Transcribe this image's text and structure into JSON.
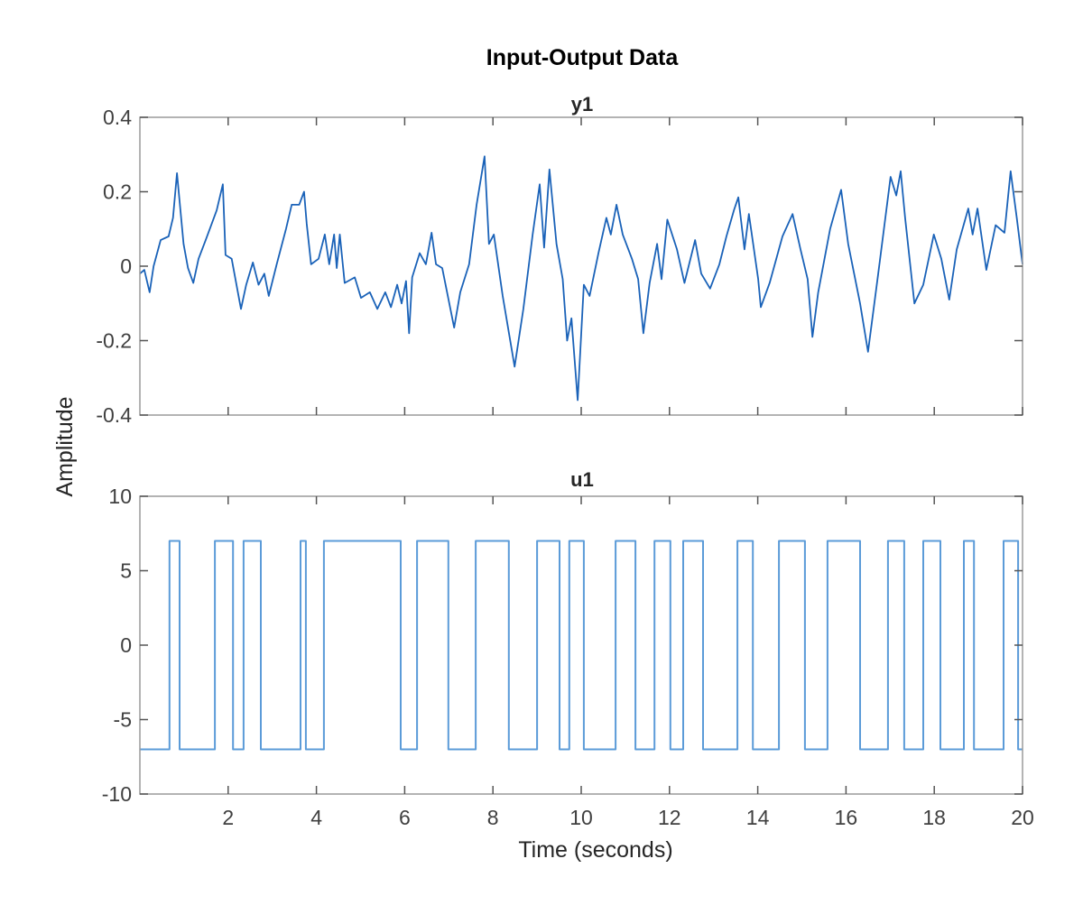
{
  "chart_data": [
    {
      "type": "line",
      "title": "Input-Output Data",
      "subplot_title": "y1",
      "ylabel": "Amplitude",
      "xlim": [
        0,
        20
      ],
      "ylim": [
        -0.4,
        0.4
      ],
      "yticks": [
        -0.4,
        -0.2,
        0,
        0.2,
        0.4
      ],
      "ytick_labels": [
        "-0.4",
        "-0.2",
        "0",
        "0.2",
        "0.4"
      ],
      "xticks": [
        2,
        4,
        6,
        8,
        10,
        12,
        14,
        16,
        18,
        20
      ],
      "grid": false,
      "color": "#1a62b8",
      "x": [
        0,
        0.1,
        0.22,
        0.31,
        0.47,
        0.65,
        0.75,
        0.84,
        0.99,
        1.09,
        1.21,
        1.33,
        1.49,
        1.74,
        1.88,
        1.94,
        2.08,
        2.29,
        2.41,
        2.56,
        2.69,
        2.82,
        2.92,
        3.1,
        3.31,
        3.44,
        3.61,
        3.72,
        3.78,
        3.88,
        4.05,
        4.19,
        4.29,
        4.4,
        4.46,
        4.53,
        4.64,
        4.87,
        5.01,
        5.21,
        5.38,
        5.56,
        5.69,
        5.83,
        5.93,
        6.03,
        6.1,
        6.17,
        6.34,
        6.48,
        6.61,
        6.71,
        6.85,
        7.12,
        7.26,
        7.46,
        7.63,
        7.81,
        7.91,
        8.02,
        8.22,
        8.49,
        8.69,
        8.9,
        9.06,
        9.16,
        9.28,
        9.44,
        9.58,
        9.68,
        9.78,
        9.92,
        10.06,
        10.19,
        10.39,
        10.57,
        10.67,
        10.8,
        10.94,
        11.15,
        11.29,
        11.41,
        11.55,
        11.72,
        11.82,
        11.95,
        12.17,
        12.34,
        12.58,
        12.72,
        12.92,
        13.13,
        13.29,
        13.46,
        13.56,
        13.7,
        13.8,
        14.01,
        14.07,
        14.27,
        14.56,
        14.79,
        14.97,
        15.13,
        15.24,
        15.37,
        15.64,
        15.89,
        16.05,
        16.32,
        16.5,
        16.73,
        17.01,
        17.14,
        17.24,
        17.34,
        17.55,
        17.75,
        17.99,
        18.16,
        18.34,
        18.51,
        18.77,
        18.87,
        18.98,
        19.18,
        19.39,
        19.59,
        19.73,
        19.87,
        20
      ],
      "y": [
        -0.02,
        -0.01,
        -0.07,
        0.0,
        0.07,
        0.08,
        0.13,
        0.25,
        0.06,
        -0.005,
        -0.045,
        0.02,
        0.07,
        0.15,
        0.22,
        0.03,
        0.02,
        -0.115,
        -0.05,
        0.01,
        -0.05,
        -0.02,
        -0.08,
        0.005,
        0.1,
        0.165,
        0.165,
        0.2,
        0.115,
        0.005,
        0.02,
        0.085,
        0.005,
        0.085,
        -0.005,
        0.085,
        -0.045,
        -0.03,
        -0.085,
        -0.07,
        -0.115,
        -0.07,
        -0.11,
        -0.05,
        -0.1,
        -0.04,
        -0.18,
        -0.03,
        0.035,
        0.005,
        0.09,
        0.005,
        -0.005,
        -0.165,
        -0.07,
        0.005,
        0.165,
        0.295,
        0.06,
        0.085,
        -0.08,
        -0.27,
        -0.115,
        0.085,
        0.22,
        0.05,
        0.26,
        0.06,
        -0.035,
        -0.2,
        -0.14,
        -0.36,
        -0.05,
        -0.08,
        0.035,
        0.13,
        0.085,
        0.165,
        0.085,
        0.02,
        -0.035,
        -0.18,
        -0.045,
        0.06,
        -0.035,
        0.125,
        0.045,
        -0.045,
        0.07,
        -0.02,
        -0.06,
        0.005,
        0.08,
        0.15,
        0.185,
        0.045,
        0.14,
        -0.035,
        -0.11,
        -0.045,
        0.08,
        0.14,
        0.045,
        -0.035,
        -0.19,
        -0.07,
        0.1,
        0.205,
        0.06,
        -0.1,
        -0.23,
        -0.02,
        0.24,
        0.19,
        0.255,
        0.13,
        -0.1,
        -0.05,
        0.085,
        0.02,
        -0.09,
        0.045,
        0.155,
        0.085,
        0.155,
        -0.01,
        0.11,
        0.09,
        0.255,
        0.13,
        0.005
      ]
    },
    {
      "type": "line",
      "subplot_title": "u1",
      "xlabel": "Time (seconds)",
      "xlim": [
        0,
        20
      ],
      "ylim": [
        -10,
        10
      ],
      "yticks": [
        -10,
        -5,
        0,
        5,
        10
      ],
      "ytick_labels": [
        "-10",
        "-5",
        "0",
        "5",
        "10"
      ],
      "xticks": [
        2,
        4,
        6,
        8,
        10,
        12,
        14,
        16,
        18,
        20
      ],
      "xtick_labels": [
        "2",
        "4",
        "6",
        "8",
        "10",
        "12",
        "14",
        "16",
        "18",
        "20"
      ],
      "grid": false,
      "color": "#5b9bd8",
      "step": true,
      "levels": [
        -7,
        7
      ],
      "initial_value": -7,
      "switch_times": [
        0.67,
        0.9,
        1.7,
        2.11,
        2.35,
        2.74,
        3.64,
        3.76,
        4.17,
        5.91,
        6.28,
        6.99,
        7.61,
        8.36,
        9.0,
        9.51,
        9.73,
        10.06,
        10.78,
        11.23,
        11.66,
        12.02,
        12.31,
        12.76,
        13.54,
        13.89,
        14.48,
        15.07,
        15.58,
        16.32,
        16.95,
        17.32,
        17.75,
        18.14,
        18.67,
        18.9,
        19.57,
        19.9
      ]
    }
  ]
}
